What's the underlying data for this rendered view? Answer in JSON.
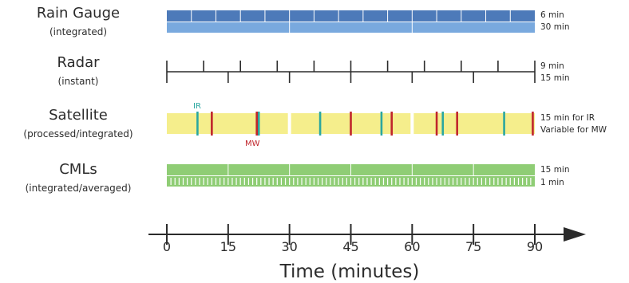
{
  "axis": {
    "title": "Time (minutes)",
    "min": 0,
    "max": 90,
    "ticks": [
      "0",
      "15",
      "30",
      "45",
      "60",
      "75",
      "90"
    ]
  },
  "rows": {
    "rain_gauge": {
      "title": "Rain Gauge",
      "subtitle": "(integrated)",
      "res_a": "6 min",
      "res_b": "30 min",
      "interval_a": 6,
      "interval_b": 30
    },
    "radar": {
      "title": "Radar",
      "subtitle": "(instant)",
      "res_a": "9 min",
      "res_b": "15 min",
      "interval_a": 9,
      "interval_b": 15
    },
    "satellite": {
      "title": "Satellite",
      "subtitle": "(processed/integrated)",
      "res_a": "15 min for IR",
      "res_b": "Variable for MW",
      "ir_tag": "IR",
      "mw_tag": "MW",
      "gaps": [
        30,
        60
      ],
      "ir_times": [
        7.5,
        22.5,
        37.5,
        52.5,
        67.5,
        82.5
      ],
      "mw_times": [
        11,
        22,
        45,
        55,
        66,
        71,
        89.5
      ]
    },
    "cmls": {
      "title": "CMLs",
      "subtitle": "(integrated/averaged)",
      "res_a": "15 min",
      "res_b": "1 min",
      "interval_a": 15,
      "interval_b": 1
    }
  },
  "colors": {
    "gauge_dark": "#4d7ab9",
    "gauge_light": "#79a9de",
    "satellite_band": "#f5ee8c",
    "ir_line": "#2aa7a0",
    "mw_line": "#c0262c",
    "cml_green": "#8fcd75",
    "text": "#2b2b2b"
  }
}
